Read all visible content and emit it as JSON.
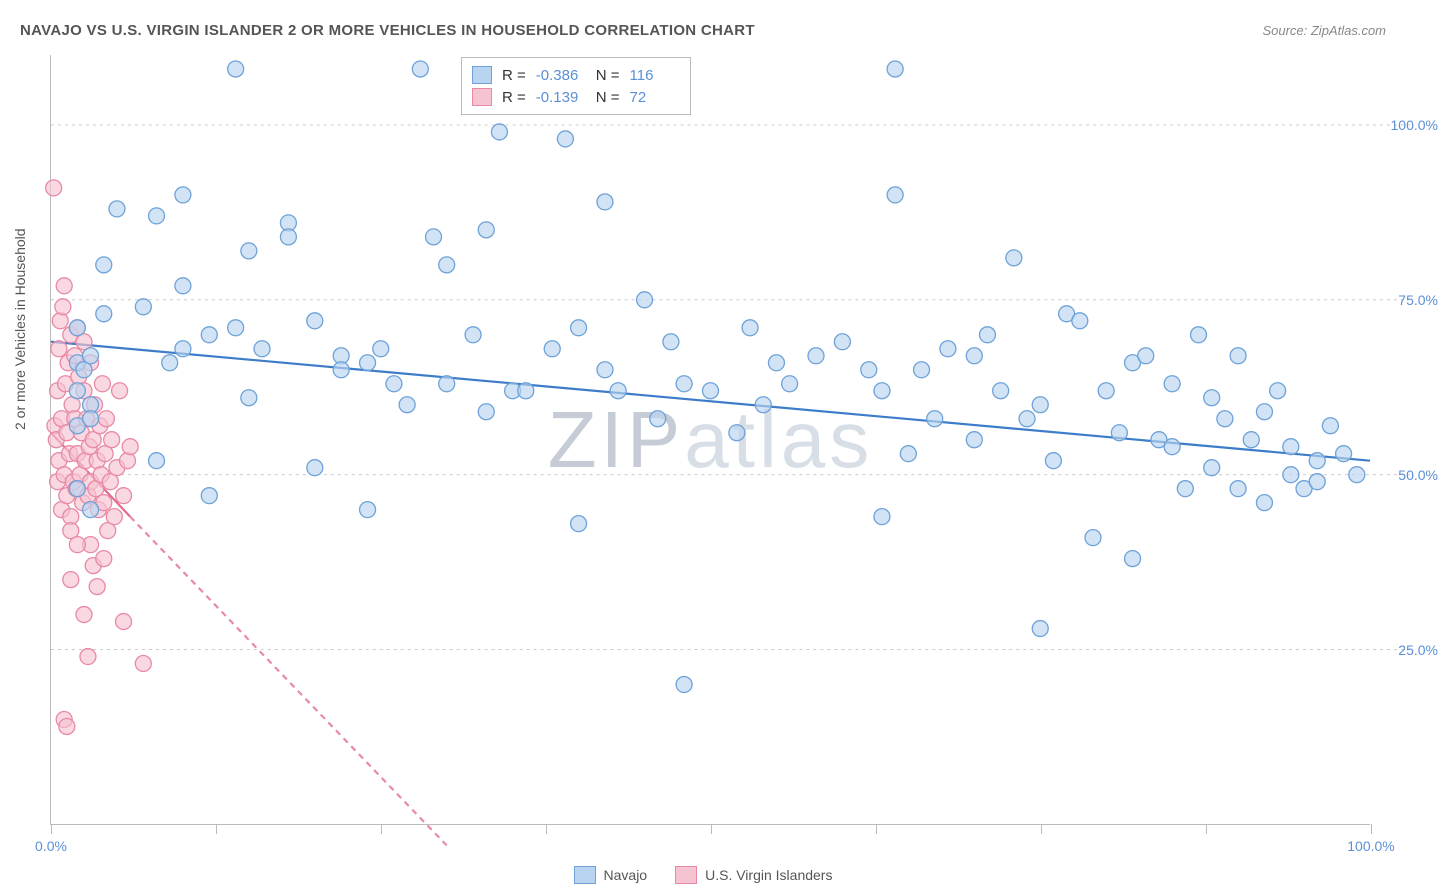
{
  "title": "NAVAJO VS U.S. VIRGIN ISLANDER 2 OR MORE VEHICLES IN HOUSEHOLD CORRELATION CHART",
  "source": "Source: ZipAtlas.com",
  "ylabel": "2 or more Vehicles in Household",
  "watermark": "ZIPatlas",
  "chart": {
    "type": "scatter",
    "xlim": [
      0,
      100
    ],
    "ylim": [
      0,
      110
    ],
    "ytick_positions": [
      25,
      50,
      75,
      100
    ],
    "ytick_labels": [
      "25.0%",
      "50.0%",
      "75.0%",
      "100.0%"
    ],
    "xtick_positions": [
      0,
      12.5,
      25,
      37.5,
      50,
      62.5,
      75,
      87.5,
      100
    ],
    "xtick_labels_visible": {
      "0": "0.0%",
      "100": "100.0%"
    },
    "grid_color": "#cccccc",
    "background_color": "#ffffff",
    "marker_radius": 8,
    "line_width": 2.2,
    "series": [
      {
        "name": "Navajo",
        "color_fill": "#b9d4f0",
        "color_stroke": "#6ea2d8",
        "line_color": "#3d7cc9",
        "R": "-0.386",
        "N": "116",
        "trend": {
          "x1": 0,
          "y1": 69,
          "x2": 100,
          "y2": 52
        },
        "points": [
          [
            2,
            62
          ],
          [
            2,
            66
          ],
          [
            2,
            71
          ],
          [
            2,
            48
          ],
          [
            2,
            57
          ],
          [
            2.5,
            65
          ],
          [
            3,
            60
          ],
          [
            3,
            58
          ],
          [
            3,
            67
          ],
          [
            3,
            45
          ],
          [
            4,
            80
          ],
          [
            4,
            73
          ],
          [
            5,
            88
          ],
          [
            7,
            74
          ],
          [
            8,
            87
          ],
          [
            8,
            52
          ],
          [
            9,
            66
          ],
          [
            10,
            68
          ],
          [
            10,
            77
          ],
          [
            10,
            90
          ],
          [
            12,
            70
          ],
          [
            12,
            47
          ],
          [
            14,
            71
          ],
          [
            14,
            108
          ],
          [
            15,
            82
          ],
          [
            15,
            61
          ],
          [
            16,
            68
          ],
          [
            18,
            86
          ],
          [
            18,
            84
          ],
          [
            20,
            72
          ],
          [
            20,
            51
          ],
          [
            22,
            67
          ],
          [
            22,
            65
          ],
          [
            24,
            66
          ],
          [
            24,
            45
          ],
          [
            25,
            68
          ],
          [
            26,
            63
          ],
          [
            27,
            60
          ],
          [
            28,
            108
          ],
          [
            29,
            84
          ],
          [
            30,
            63
          ],
          [
            30,
            80
          ],
          [
            32,
            70
          ],
          [
            33,
            85
          ],
          [
            33,
            59
          ],
          [
            34,
            99
          ],
          [
            35,
            62
          ],
          [
            36,
            62
          ],
          [
            38,
            68
          ],
          [
            39,
            98
          ],
          [
            40,
            71
          ],
          [
            40,
            43
          ],
          [
            42,
            89
          ],
          [
            42,
            65
          ],
          [
            43,
            62
          ],
          [
            45,
            75
          ],
          [
            46,
            58
          ],
          [
            47,
            69
          ],
          [
            48,
            63
          ],
          [
            48,
            20
          ],
          [
            50,
            62
          ],
          [
            52,
            56
          ],
          [
            53,
            71
          ],
          [
            54,
            60
          ],
          [
            55,
            66
          ],
          [
            56,
            63
          ],
          [
            58,
            67
          ],
          [
            60,
            69
          ],
          [
            62,
            65
          ],
          [
            63,
            62
          ],
          [
            63,
            44
          ],
          [
            64,
            108
          ],
          [
            64,
            90
          ],
          [
            65,
            53
          ],
          [
            66,
            65
          ],
          [
            67,
            58
          ],
          [
            68,
            68
          ],
          [
            70,
            55
          ],
          [
            70,
            67
          ],
          [
            71,
            70
          ],
          [
            72,
            62
          ],
          [
            73,
            81
          ],
          [
            74,
            58
          ],
          [
            75,
            28
          ],
          [
            75,
            60
          ],
          [
            76,
            52
          ],
          [
            77,
            73
          ],
          [
            78,
            72
          ],
          [
            79,
            41
          ],
          [
            80,
            62
          ],
          [
            81,
            56
          ],
          [
            82,
            66
          ],
          [
            82,
            38
          ],
          [
            83,
            67
          ],
          [
            84,
            55
          ],
          [
            85,
            54
          ],
          [
            85,
            63
          ],
          [
            86,
            48
          ],
          [
            87,
            70
          ],
          [
            88,
            61
          ],
          [
            88,
            51
          ],
          [
            89,
            58
          ],
          [
            90,
            67
          ],
          [
            90,
            48
          ],
          [
            91,
            55
          ],
          [
            92,
            59
          ],
          [
            92,
            46
          ],
          [
            93,
            62
          ],
          [
            94,
            50
          ],
          [
            94,
            54
          ],
          [
            95,
            48
          ],
          [
            96,
            52
          ],
          [
            96,
            49
          ],
          [
            97,
            57
          ],
          [
            98,
            53
          ],
          [
            99,
            50
          ]
        ]
      },
      {
        "name": "U.S. Virgin Islanders",
        "color_fill": "#f6c3d1",
        "color_stroke": "#e889a5",
        "line_color": "#e26b8f",
        "R": "-0.139",
        "N": "72",
        "trend": {
          "x1": 0,
          "y1": 56,
          "x2": 6,
          "y2": 44
        },
        "trend_ext": {
          "x1": 6,
          "y1": 44,
          "x2": 30,
          "y2": -3
        },
        "points": [
          [
            0.2,
            91
          ],
          [
            0.3,
            57
          ],
          [
            0.4,
            55
          ],
          [
            0.5,
            49
          ],
          [
            0.5,
            62
          ],
          [
            0.6,
            52
          ],
          [
            0.6,
            68
          ],
          [
            0.7,
            72
          ],
          [
            0.8,
            58
          ],
          [
            0.8,
            45
          ],
          [
            0.9,
            74
          ],
          [
            1.0,
            77
          ],
          [
            1.0,
            50
          ],
          [
            1.1,
            63
          ],
          [
            1.2,
            56
          ],
          [
            1.2,
            47
          ],
          [
            1.3,
            66
          ],
          [
            1.4,
            53
          ],
          [
            1.5,
            70
          ],
          [
            1.5,
            44
          ],
          [
            1.5,
            35
          ],
          [
            1.6,
            60
          ],
          [
            1.7,
            49
          ],
          [
            1.8,
            58
          ],
          [
            1.8,
            67
          ],
          [
            1.9,
            48
          ],
          [
            2.0,
            71
          ],
          [
            2.0,
            53
          ],
          [
            2.1,
            64
          ],
          [
            2.2,
            50
          ],
          [
            2.3,
            56
          ],
          [
            2.4,
            46
          ],
          [
            2.5,
            62
          ],
          [
            2.5,
            69
          ],
          [
            2.6,
            52
          ],
          [
            2.7,
            58
          ],
          [
            2.8,
            47
          ],
          [
            2.9,
            54
          ],
          [
            3.0,
            66
          ],
          [
            3.0,
            49
          ],
          [
            3.2,
            55
          ],
          [
            3.3,
            60
          ],
          [
            3.4,
            48
          ],
          [
            3.5,
            52
          ],
          [
            3.6,
            45
          ],
          [
            3.7,
            57
          ],
          [
            3.8,
            50
          ],
          [
            3.9,
            63
          ],
          [
            4.0,
            46
          ],
          [
            4.1,
            53
          ],
          [
            4.2,
            58
          ],
          [
            4.3,
            42
          ],
          [
            4.5,
            49
          ],
          [
            4.6,
            55
          ],
          [
            4.8,
            44
          ],
          [
            5.0,
            51
          ],
          [
            5.2,
            62
          ],
          [
            5.5,
            47
          ],
          [
            5.8,
            52
          ],
          [
            6.0,
            54
          ],
          [
            1.0,
            15
          ],
          [
            1.2,
            14
          ],
          [
            2.5,
            30
          ],
          [
            2.8,
            24
          ],
          [
            3.0,
            40
          ],
          [
            3.2,
            37
          ],
          [
            3.5,
            34
          ],
          [
            4.0,
            38
          ],
          [
            1.5,
            42
          ],
          [
            2.0,
            40
          ],
          [
            5.5,
            29
          ],
          [
            7.0,
            23
          ]
        ]
      }
    ]
  },
  "legend": {
    "series1_label": "Navajo",
    "series2_label": "U.S. Virgin Islanders"
  },
  "stats_labels": {
    "R": "R =",
    "N": "N ="
  }
}
